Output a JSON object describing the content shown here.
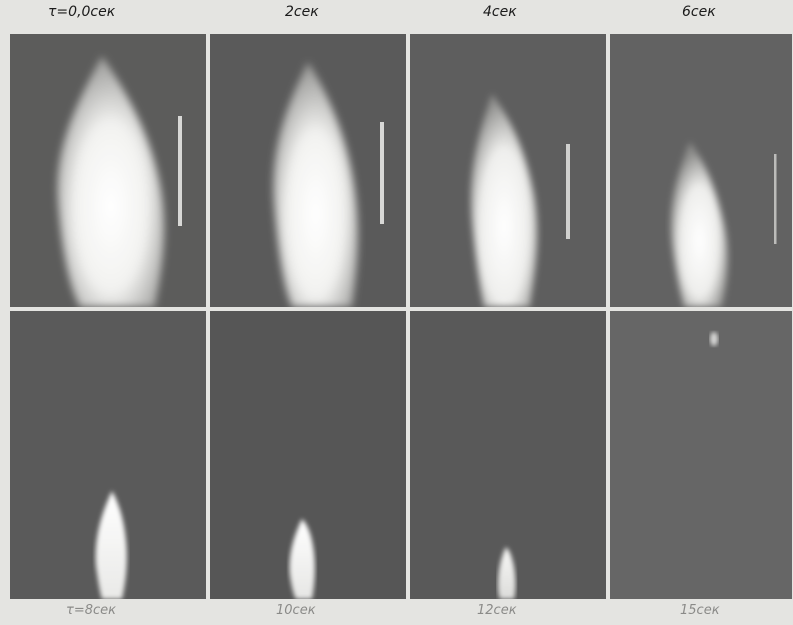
{
  "figure": {
    "top_labels": [
      "τ=0,0сек",
      "2сек",
      "4сек",
      "6сек"
    ],
    "bottom_labels": [
      "τ=8сек",
      "10сек",
      "12сек",
      "15сек"
    ],
    "frames": [
      {
        "row": 1,
        "col": 1,
        "subject": "flame-plume",
        "brightness": 1.0
      },
      {
        "row": 1,
        "col": 2,
        "subject": "flame-plume",
        "brightness": 1.0
      },
      {
        "row": 1,
        "col": 3,
        "subject": "flame-plume",
        "brightness": 0.95
      },
      {
        "row": 1,
        "col": 4,
        "subject": "flame-plume",
        "brightness": 0.85
      },
      {
        "row": 2,
        "col": 1,
        "subject": "flame-plume",
        "brightness": 0.8
      },
      {
        "row": 2,
        "col": 2,
        "subject": "flame-plume",
        "brightness": 0.7
      },
      {
        "row": 2,
        "col": 3,
        "subject": "flame-plume",
        "brightness": 0.6
      },
      {
        "row": 2,
        "col": 4,
        "subject": "flame-plume",
        "brightness": 0.1
      }
    ],
    "colors": {
      "background": "#5b5b5b",
      "flame": "#f7f7f5",
      "paper": "#e4e4e1"
    }
  }
}
